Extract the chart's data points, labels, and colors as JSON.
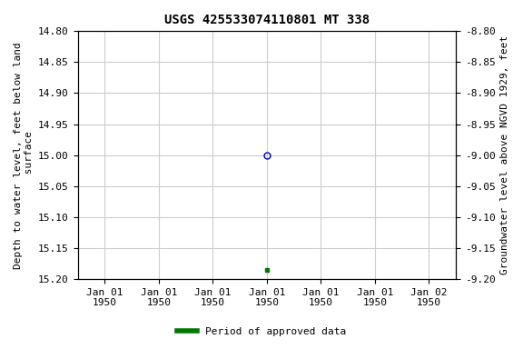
{
  "title": "USGS 425533074110801 MT 338",
  "title_fontsize": 10,
  "ylabel_left": "Depth to water level, feet below land\n surface",
  "ylabel_right": "Groundwater level above NGVD 1929, feet",
  "ylim_left": [
    14.8,
    15.2
  ],
  "ylim_right": [
    -8.8,
    -9.2
  ],
  "yticks_left": [
    14.8,
    14.85,
    14.9,
    14.95,
    15.0,
    15.05,
    15.1,
    15.15,
    15.2
  ],
  "yticks_right": [
    -8.8,
    -8.85,
    -8.9,
    -8.95,
    -9.0,
    -9.05,
    -9.1,
    -9.15,
    -9.2
  ],
  "xlim_hours": [
    -3.5,
    3.5
  ],
  "num_xticks": 7,
  "xtick_hour_positions": [
    -3.0,
    -2.0,
    -1.0,
    0.0,
    1.0,
    2.0,
    3.0
  ],
  "xtick_labels": [
    "Jan 01\n1950",
    "Jan 01\n1950",
    "Jan 01\n1950",
    "Jan 01\n1950",
    "Jan 01\n1950",
    "Jan 01\n1950",
    "Jan 02\n1950"
  ],
  "data_point_open": {
    "x_hour": 0.0,
    "depth": 15.0,
    "color": "#0000bb",
    "marker": "o",
    "markersize": 5,
    "fillstyle": "none"
  },
  "data_point_filled": {
    "x_hour": 0.0,
    "depth": 15.185,
    "color": "#007700",
    "marker": "s",
    "markersize": 3,
    "fillstyle": "full"
  },
  "grid_color": "#cccccc",
  "background_color": "#ffffff",
  "tick_label_fontsize": 8,
  "axis_label_fontsize": 8,
  "legend_label": "Period of approved data",
  "legend_color": "#007700",
  "font_family": "monospace"
}
